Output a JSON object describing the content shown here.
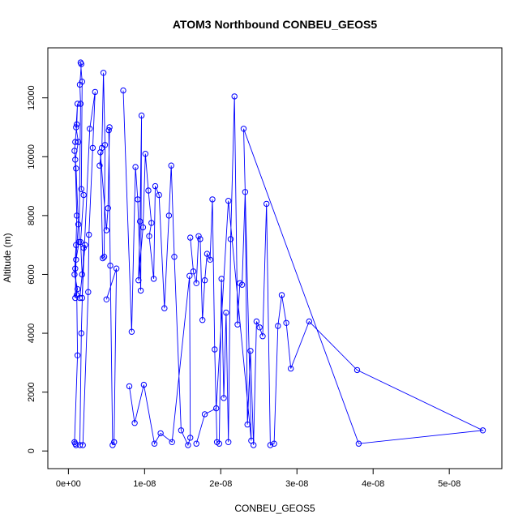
{
  "chart_data": {
    "type": "line",
    "title": "ATOM3 Northbound CONBEU_GEOS5",
    "xlabel": "CONBEU_GEOS5",
    "ylabel": "Altitude (m)",
    "xlim": [
      -2.7e-09,
      5.69e-08
    ],
    "ylim": [
      -600,
      13700
    ],
    "x_ticks": [
      0,
      1e-08,
      2e-08,
      3e-08,
      4e-08,
      5e-08
    ],
    "x_tick_labels": [
      "0e+00",
      "1e-08",
      "2e-08",
      "3e-08",
      "4e-08",
      "5e-08"
    ],
    "y_ticks": [
      0,
      2000,
      4000,
      6000,
      8000,
      10000,
      12000
    ],
    "y_tick_labels": [
      "0",
      "2000",
      "4000",
      "6000",
      "8000",
      "10000",
      "12000"
    ],
    "grid": false,
    "legend": "none",
    "series_color": "#0000ff",
    "marker": "open-circle",
    "series": [
      {
        "x": [
          1e-09,
          9e-10,
          8e-10,
          1.2e-09,
          1.1e-09,
          9e-10,
          1.3e-09,
          1e-09,
          8e-10,
          9e-10,
          1.1e-09,
          1.2e-09,
          1e-09,
          1.3e-09,
          9e-10,
          1.1e-09,
          1e-09,
          8e-10,
          1.2e-09,
          9e-10,
          1e-09,
          1.4e-09,
          1.6e-09,
          1.5e-09,
          1.7e-09,
          1.6e-09,
          1.8e-09,
          1.7e-09,
          2e-09,
          1.6e-09,
          1.8e-09,
          1.5e-09,
          2.2e-09,
          2e-09,
          1.7e-09,
          1.5e-09
        ],
        "y": [
          200,
          250,
          300,
          3250,
          5300,
          6200,
          7700,
          9600,
          10200,
          10500,
          11100,
          11800,
          11000,
          10500,
          9900,
          8000,
          7000,
          6000,
          5500,
          5200,
          6500,
          7100,
          11800,
          12450,
          13150,
          13200,
          12550,
          8900,
          8700,
          7100,
          6000,
          5200,
          7000,
          6900,
          4000,
          200
        ]
      },
      {
        "x": [
          1.9e-09,
          2.6e-09,
          2.7e-09,
          3.2e-09,
          3.5e-09,
          2.8e-09,
          1.8e-09
        ],
        "y": [
          200,
          5400,
          7350,
          10300,
          12200,
          10950,
          5200
        ]
      },
      {
        "x": [
          4.1e-09,
          4.4e-09,
          4.6e-09,
          4.8e-09,
          4.7e-09,
          4.5e-09,
          4.2e-09,
          5e-09,
          5.2e-09,
          5.4e-09,
          5.3e-09,
          5.5e-09,
          5.8e-09,
          6e-09,
          6.3e-09,
          5e-09
        ],
        "y": [
          9700,
          10300,
          12850,
          10400,
          6600,
          6550,
          10150,
          7500,
          8250,
          11000,
          10900,
          6300,
          200,
          300,
          6200,
          5150
        ]
      },
      {
        "x": [
          7.2e-09,
          8.3e-09,
          8.8e-09,
          9.1e-09,
          9.5e-09,
          9.6e-09,
          9.4e-09,
          9.2e-09,
          9.8e-09,
          1.01e-08,
          1.05e-08,
          1.09e-08,
          1.06e-08,
          1.12e-08,
          1.14e-08,
          1.19e-08,
          1.26e-08,
          1.32e-08,
          1.35e-08,
          1.39e-08,
          1.48e-08,
          1.57e-08,
          1.6e-08,
          1.59e-08,
          1.36e-08,
          1.21e-08,
          1.13e-08,
          9.9e-09,
          8.7e-09,
          8e-09
        ],
        "y": [
          12250,
          4050,
          9650,
          8550,
          5450,
          11400,
          7800,
          5800,
          7600,
          10100,
          8850,
          7750,
          7300,
          5850,
          9000,
          8700,
          4850,
          8000,
          9700,
          6600,
          700,
          200,
          450,
          5950,
          300,
          600,
          250,
          2250,
          950,
          2200
        ]
      },
      {
        "x": [
          1.6e-08,
          1.64e-08,
          1.68e-08,
          1.71e-08,
          1.73e-08,
          1.76e-08,
          1.79e-08,
          1.82e-08,
          1.86e-08,
          1.89e-08,
          1.92e-08,
          1.95e-08,
          1.98e-08,
          2.01e-08,
          2.04e-08,
          2.07e-08,
          2.1e-08,
          2.13e-08,
          2.18e-08,
          2.22e-08,
          2.25e-08,
          2.28e-08,
          2.32e-08,
          2.35e-08,
          2.39e-08,
          2.43e-08,
          2.47e-08,
          2.51e-08,
          2.55e-08,
          2.6e-08,
          2.65e-08,
          2.7e-08,
          2.75e-08,
          2.8e-08,
          2.86e-08,
          2.92e-08,
          3.16e-08,
          3.79e-08,
          5.44e-08,
          3.81e-08,
          2.3e-08,
          2.4e-08,
          2.1e-08,
          1.94e-08,
          1.79e-08,
          1.68e-08
        ],
        "y": [
          7250,
          6100,
          5700,
          7300,
          7200,
          4450,
          5800,
          6700,
          6500,
          8550,
          3450,
          300,
          250,
          5850,
          1800,
          4700,
          300,
          7200,
          12050,
          4300,
          5700,
          5650,
          8800,
          900,
          3400,
          200,
          4400,
          4200,
          3900,
          8400,
          200,
          250,
          4250,
          5300,
          4350,
          2800,
          4400,
          2750,
          700,
          250,
          10950,
          350,
          8500,
          1450,
          1250,
          250
        ]
      }
    ]
  }
}
